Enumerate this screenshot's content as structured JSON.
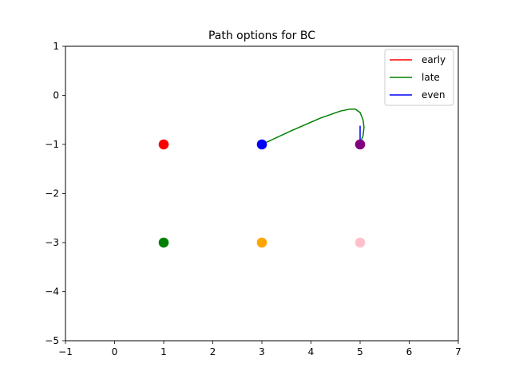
{
  "chart_data": {
    "type": "scatter",
    "title": "Path options for BC",
    "xlabel": "",
    "ylabel": "",
    "xlim": [
      -1,
      7
    ],
    "ylim": [
      -5,
      1
    ],
    "xticks": [
      -1,
      0,
      1,
      2,
      3,
      4,
      5,
      6,
      7
    ],
    "yticks": [
      1,
      0,
      -1,
      -2,
      -3,
      -4,
      -5
    ],
    "xtick_labels": [
      "−1",
      "0",
      "1",
      "2",
      "3",
      "4",
      "5",
      "6",
      "7"
    ],
    "ytick_labels": [
      "1",
      "0",
      "−1",
      "−2",
      "−3",
      "−4",
      "−5"
    ],
    "grid": false,
    "legend_position": "top-right",
    "points": [
      {
        "x": 1,
        "y": -1,
        "color": "#ff0000"
      },
      {
        "x": 3,
        "y": -1,
        "color": "#0000ff"
      },
      {
        "x": 5,
        "y": -1,
        "color": "#800080"
      },
      {
        "x": 1,
        "y": -3,
        "color": "#008000"
      },
      {
        "x": 3,
        "y": -3,
        "color": "#ffa500"
      },
      {
        "x": 5,
        "y": -3,
        "color": "#ffc0cb"
      }
    ],
    "series": [
      {
        "name": "early",
        "color": "#ff0000",
        "x": [],
        "y": []
      },
      {
        "name": "late",
        "color": "#008000",
        "x": [
          3.0,
          3.6,
          4.2,
          4.6,
          4.8,
          4.9,
          5.0,
          5.06,
          5.08,
          5.06,
          5.02,
          5.0
        ],
        "y": [
          -1.0,
          -0.72,
          -0.46,
          -0.32,
          -0.28,
          -0.28,
          -0.35,
          -0.5,
          -0.65,
          -0.82,
          -0.93,
          -1.0
        ]
      },
      {
        "name": "even",
        "color": "#0000ff",
        "x": [
          5.0,
          5.0
        ],
        "y": [
          -1.0,
          -0.62
        ]
      }
    ]
  }
}
